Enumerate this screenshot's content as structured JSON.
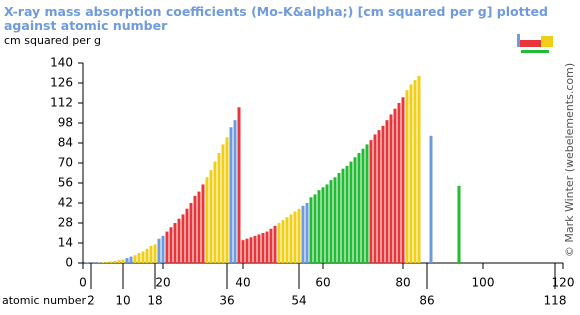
{
  "chart_data": {
    "type": "bar",
    "title": "X-ray mass absorption coefficients (Mo-K&alpha;) [cm squared per g] plotted against atomic number",
    "y_label": "cm squared per g",
    "x_label": "atomic number",
    "credit": "© Mark Winter (webelements.com)",
    "x": [
      1,
      2,
      3,
      4,
      5,
      6,
      7,
      8,
      9,
      10,
      11,
      12,
      13,
      14,
      15,
      16,
      17,
      18,
      19,
      20,
      21,
      22,
      23,
      24,
      25,
      26,
      27,
      28,
      29,
      30,
      31,
      32,
      33,
      34,
      35,
      36,
      37,
      38,
      39,
      40,
      41,
      42,
      43,
      44,
      45,
      46,
      47,
      48,
      49,
      50,
      51,
      52,
      53,
      54,
      55,
      56,
      57,
      58,
      59,
      60,
      61,
      62,
      63,
      64,
      65,
      66,
      67,
      68,
      69,
      70,
      71,
      72,
      73,
      74,
      75,
      76,
      77,
      78,
      79,
      80,
      81,
      82,
      83,
      84,
      85,
      86,
      87,
      88,
      89,
      90,
      91,
      92,
      93,
      94,
      95,
      96,
      97,
      98,
      99,
      100,
      101,
      102,
      103,
      104,
      105,
      106,
      107,
      108,
      109,
      110,
      111,
      112,
      113,
      114,
      115,
      116,
      117,
      118
    ],
    "values": [
      0.4,
      0.2,
      0.2,
      0.3,
      0.5,
      0.7,
      1,
      1.5,
      2,
      2.5,
      3.5,
      4.5,
      5.5,
      7,
      8,
      10,
      12,
      13,
      17,
      19,
      22,
      25,
      28,
      31,
      34,
      38,
      42,
      47,
      50,
      55,
      60,
      65,
      71,
      77,
      83,
      88,
      95,
      100,
      109,
      16,
      17,
      18,
      19,
      20,
      21,
      22,
      24,
      26,
      28,
      30,
      32,
      34,
      36,
      38,
      40,
      42,
      46,
      48,
      51,
      53,
      55,
      58,
      60,
      63,
      66,
      68,
      71,
      74,
      77,
      80,
      83,
      86,
      90,
      93,
      96,
      100,
      104,
      108,
      112,
      116,
      121,
      125,
      128,
      131,
      null,
      null,
      89,
      null,
      null,
      null,
      null,
      null,
      null,
      54,
      null,
      null,
      null,
      null,
      null,
      null,
      null,
      null,
      null,
      null,
      null,
      null,
      null,
      null,
      null,
      null,
      null,
      null,
      null,
      null,
      null,
      null,
      null,
      null
    ],
    "blocks": [
      "s",
      "s",
      "s",
      "s",
      "p",
      "p",
      "p",
      "p",
      "p",
      "p",
      "s",
      "s",
      "p",
      "p",
      "p",
      "p",
      "p",
      "p",
      "s",
      "s",
      "d",
      "d",
      "d",
      "d",
      "d",
      "d",
      "d",
      "d",
      "d",
      "d",
      "p",
      "p",
      "p",
      "p",
      "p",
      "p",
      "s",
      "s",
      "d",
      "d",
      "d",
      "d",
      "d",
      "d",
      "d",
      "d",
      "d",
      "d",
      "p",
      "p",
      "p",
      "p",
      "p",
      "p",
      "s",
      "s",
      "f",
      "f",
      "f",
      "f",
      "f",
      "f",
      "f",
      "f",
      "f",
      "f",
      "f",
      "f",
      "f",
      "f",
      "f",
      "d",
      "d",
      "d",
      "d",
      "d",
      "d",
      "d",
      "d",
      "d",
      "p",
      "p",
      "p",
      "p",
      "p",
      "p",
      "s",
      "s",
      "f",
      "f",
      "f",
      "f",
      "f",
      "f",
      "f",
      "f",
      "f",
      "f",
      "f",
      "f",
      "f",
      "f",
      "f",
      "d",
      "d",
      "d",
      "d",
      "d",
      "d",
      "d",
      "d",
      "d",
      "p",
      "p",
      "p",
      "p",
      "p",
      "p"
    ],
    "block_colors": {
      "s": "#6f9bde",
      "p": "#f0cf18",
      "d": "#e8373b",
      "f": "#22bb33"
    },
    "xlim": [
      0,
      120
    ],
    "xticks": [
      0,
      20,
      40,
      60,
      80,
      100,
      120
    ],
    "xticks_bottom": [
      2,
      10,
      18,
      36,
      54,
      86,
      118
    ],
    "ylim": [
      0,
      140
    ],
    "yticks": [
      0,
      14,
      28,
      42,
      56,
      70,
      84,
      98,
      112,
      126,
      140
    ],
    "grid": false
  }
}
